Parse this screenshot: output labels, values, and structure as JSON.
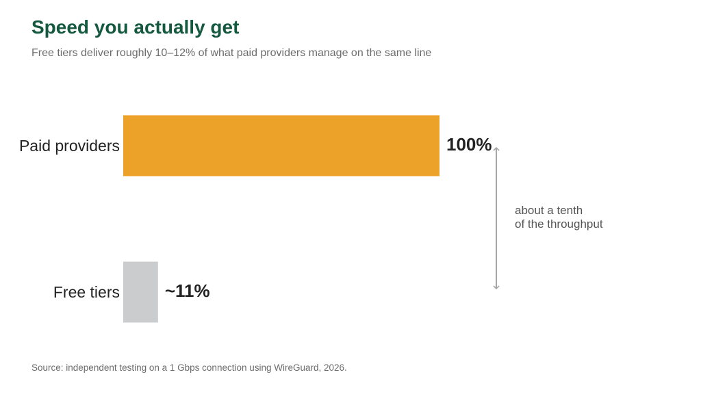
{
  "title": "Speed you actually get",
  "subtitle": "Free tiers deliver roughly 10–12% of what paid providers manage on the same line",
  "source": "Source: independent testing on a 1 Gbps connection using WireGuard, 2026.",
  "annotation": {
    "line1": "about a tenth",
    "line2": "of the throughput"
  },
  "colors": {
    "title": "#14593f",
    "paid_bar": "#eca229",
    "free_bar": "#cbcccd",
    "arrow": "#a6a6a6"
  },
  "chart_data": {
    "type": "bar",
    "orientation": "horizontal",
    "categories": [
      "Paid providers",
      "Free tiers"
    ],
    "values": [
      100,
      11
    ],
    "value_labels": [
      "100%",
      "~11%"
    ],
    "xlim": [
      0,
      100
    ],
    "grid": false,
    "legend": "none"
  }
}
